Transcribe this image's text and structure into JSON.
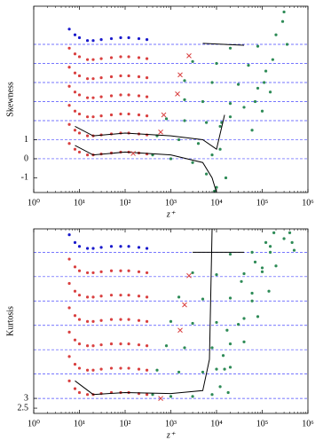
{
  "chart_data": [
    {
      "type": "scatter",
      "ylabel": "Skewness",
      "xlabel": "z⁺",
      "xscale": "log",
      "xlim": [
        1,
        1000000
      ],
      "xticks": [
        {
          "value": 1,
          "label": "10⁰"
        },
        {
          "value": 10,
          "label": "10¹"
        },
        {
          "value": 100,
          "label": "10²"
        },
        {
          "value": 1000,
          "label": "10³"
        },
        {
          "value": 10000,
          "label": "10⁴"
        },
        {
          "value": 100000,
          "label": "10⁵"
        },
        {
          "value": 1000000,
          "label": "10⁶"
        }
      ],
      "ylim": [
        -1.77,
        8
      ],
      "yticks": [
        -1,
        0,
        1
      ],
      "reference_lines": {
        "color": "#4a4aff",
        "values": [
          0,
          1,
          2,
          3,
          4,
          5,
          6
        ]
      },
      "series": [
        {
          "color": "#1a1acc",
          "marker": "dot",
          "x": [
            6,
            8,
            10,
            15,
            20,
            30,
            50,
            80,
            120,
            200,
            300
          ],
          "values": [
            6.8,
            6.5,
            6.35,
            6.2,
            6.2,
            6.25,
            6.3,
            6.35,
            6.35,
            6.3,
            6.25
          ]
        },
        {
          "color": "#d94040",
          "marker": "dot",
          "x": [
            6,
            8,
            10,
            15,
            20,
            30,
            50,
            80,
            120,
            200,
            300
          ],
          "values": [
            5.8,
            5.5,
            5.35,
            5.2,
            5.2,
            5.25,
            5.3,
            5.35,
            5.35,
            5.3,
            5.25
          ]
        },
        {
          "color": "#d94040",
          "marker": "dot",
          "x": [
            6,
            8,
            10,
            15,
            20,
            30,
            50,
            80,
            120,
            200,
            300
          ],
          "values": [
            4.8,
            4.5,
            4.35,
            4.2,
            4.2,
            4.25,
            4.3,
            4.35,
            4.35,
            4.3,
            4.25
          ]
        },
        {
          "color": "#d94040",
          "marker": "dot",
          "x": [
            6,
            8,
            10,
            15,
            20,
            30,
            50,
            80,
            120,
            200,
            300
          ],
          "values": [
            3.8,
            3.5,
            3.35,
            3.2,
            3.2,
            3.25,
            3.3,
            3.35,
            3.35,
            3.3,
            3.25
          ]
        },
        {
          "color": "#d94040",
          "marker": "dot",
          "x": [
            6,
            8,
            10,
            15,
            20,
            30,
            50,
            80,
            120,
            200,
            300
          ],
          "values": [
            2.8,
            2.5,
            2.35,
            2.2,
            2.2,
            2.25,
            2.3,
            2.35,
            2.35,
            2.3,
            2.25
          ]
        },
        {
          "color": "#d94040",
          "marker": "dot",
          "x": [
            6,
            8,
            10,
            15,
            20,
            30,
            50,
            80,
            120,
            200,
            300
          ],
          "values": [
            1.8,
            1.5,
            1.35,
            1.2,
            1.2,
            1.25,
            1.3,
            1.35,
            1.35,
            1.3,
            1.25
          ]
        },
        {
          "color": "#d94040",
          "marker": "dot",
          "x": [
            6,
            8,
            10,
            15,
            20,
            30,
            50,
            80,
            120,
            200,
            300
          ],
          "values": [
            0.8,
            0.5,
            0.35,
            0.2,
            0.2,
            0.25,
            0.3,
            0.35,
            0.35,
            0.3,
            0.25
          ]
        },
        {
          "color": "#2e8b57",
          "marker": "dot",
          "x": [
            400,
            1000,
            3000,
            6000,
            9000,
            12000
          ],
          "values": [
            0.2,
            0,
            -0.2,
            -0.8,
            -1.7,
            0.5
          ]
        },
        {
          "color": "#2e8b57",
          "marker": "dot",
          "x": [
            500,
            1500,
            4000,
            8000,
            10000,
            13000
          ],
          "values": [
            1.2,
            1.0,
            0.8,
            0.2,
            -1.5,
            1.9
          ]
        },
        {
          "color": "#2e8b57",
          "marker": "dot",
          "x": [
            800,
            2000,
            6000,
            12000,
            16000,
            20000
          ],
          "values": [
            2.1,
            2.0,
            1.9,
            1.7,
            -1,
            2.2
          ]
        },
        {
          "color": "#2e8b57",
          "marker": "dot",
          "x": [
            2000,
            5000,
            20000,
            40000,
            60000,
            70000
          ],
          "values": [
            3.1,
            3.0,
            2.9,
            2.7,
            1.5,
            3.0
          ]
        },
        {
          "color": "#2e8b57",
          "marker": "dot",
          "x": [
            2000,
            8000,
            30000,
            80000,
            100000,
            110000
          ],
          "values": [
            4.1,
            4.0,
            3.9,
            3.7,
            2.5,
            4.0
          ]
        },
        {
          "color": "#2e8b57",
          "marker": "dot",
          "x": [
            3000,
            10000,
            50000,
            120000,
            150000,
            170000
          ],
          "values": [
            5.1,
            5.0,
            4.9,
            4.6,
            3.5,
            5.2
          ]
        },
        {
          "color": "#2e8b57",
          "marker": "dot",
          "x": [
            20000,
            80000,
            200000,
            280000,
            300000,
            350000
          ],
          "values": [
            5.8,
            5.9,
            6.5,
            7.2,
            7.7,
            6.0
          ]
        },
        {
          "color": "#000000",
          "marker": "line",
          "x": [
            8,
            20,
            100,
            1000,
            5000,
            8000,
            10000
          ],
          "values": [
            0.7,
            0.2,
            0.35,
            0.2,
            -0.2,
            -1,
            -1.77
          ]
        },
        {
          "color": "#000000",
          "marker": "line",
          "x": [
            8,
            20,
            100,
            1000,
            5000,
            10000,
            15000
          ],
          "values": [
            1.7,
            1.2,
            1.35,
            1.2,
            1.0,
            0.5,
            2.3
          ]
        },
        {
          "color": "#000000",
          "marker": "line",
          "x": [
            5000,
            40000
          ],
          "values": [
            6.05,
            5.95
          ]
        },
        {
          "color": "#d94040",
          "marker": "cross",
          "x": [
            150,
            600,
            700,
            1400,
            1600,
            2500
          ],
          "values": [
            0.28,
            1.4,
            2.3,
            3.4,
            4.4,
            5.4
          ]
        }
      ]
    },
    {
      "type": "scatter",
      "ylabel": "Kurtosis",
      "xlabel": "z⁺",
      "xscale": "log",
      "xlim": [
        1,
        1000000
      ],
      "xticks": [
        {
          "value": 1,
          "label": "10⁰"
        },
        {
          "value": 10,
          "label": "10¹"
        },
        {
          "value": 100,
          "label": "10²"
        },
        {
          "value": 1000,
          "label": "10³"
        },
        {
          "value": 10000,
          "label": "10⁴"
        },
        {
          "value": 100000,
          "label": "10⁵"
        },
        {
          "value": 1000000,
          "label": "10⁶"
        }
      ],
      "ylim": [
        2.23,
        11.7
      ],
      "yticks": [
        2.5,
        3
      ],
      "reference_lines": {
        "color": "#4a4aff",
        "values": [
          3,
          4.25,
          5.5,
          6.75,
          8,
          9.25,
          10.5
        ]
      },
      "series": [
        {
          "color": "#1a1acc",
          "marker": "dot",
          "x": [
            6,
            8,
            10,
            15,
            20,
            30,
            50,
            80,
            120,
            200,
            300
          ],
          "values": [
            11.4,
            11.0,
            10.8,
            10.7,
            10.7,
            10.75,
            10.8,
            10.8,
            10.8,
            10.75,
            10.7
          ]
        },
        {
          "color": "#d94040",
          "marker": "dot",
          "x": [
            6,
            8,
            10,
            15,
            20,
            30,
            50,
            80,
            120,
            200,
            300
          ],
          "values": [
            10.15,
            9.75,
            9.55,
            9.45,
            9.45,
            9.5,
            9.55,
            9.55,
            9.55,
            9.5,
            9.45
          ]
        },
        {
          "color": "#d94040",
          "marker": "dot",
          "x": [
            6,
            8,
            10,
            15,
            20,
            30,
            50,
            80,
            120,
            200,
            300
          ],
          "values": [
            8.9,
            8.5,
            8.3,
            8.2,
            8.2,
            8.25,
            8.3,
            8.3,
            8.3,
            8.25,
            8.2
          ]
        },
        {
          "color": "#d94040",
          "marker": "dot",
          "x": [
            6,
            8,
            10,
            15,
            20,
            30,
            50,
            80,
            120,
            200,
            300
          ],
          "values": [
            7.65,
            7.25,
            7.05,
            6.95,
            6.95,
            7.0,
            7.05,
            7.05,
            7.05,
            7.0,
            6.95
          ]
        },
        {
          "color": "#d94040",
          "marker": "dot",
          "x": [
            6,
            8,
            10,
            15,
            20,
            30,
            50,
            80,
            120,
            200,
            300
          ],
          "values": [
            6.4,
            6.0,
            5.8,
            5.7,
            5.7,
            5.75,
            5.8,
            5.8,
            5.8,
            5.75,
            5.7
          ]
        },
        {
          "color": "#d94040",
          "marker": "dot",
          "x": [
            6,
            8,
            10,
            15,
            20,
            30,
            50,
            80,
            120,
            200,
            300
          ],
          "values": [
            5.15,
            4.75,
            4.55,
            4.45,
            4.45,
            4.5,
            4.55,
            4.55,
            4.55,
            4.5,
            4.45
          ]
        },
        {
          "color": "#d94040",
          "marker": "dot",
          "x": [
            6,
            8,
            10,
            15,
            20,
            30,
            50,
            80,
            120,
            200,
            300
          ],
          "values": [
            3.9,
            3.5,
            3.3,
            3.2,
            3.2,
            3.25,
            3.3,
            3.3,
            3.3,
            3.25,
            3.2
          ]
        },
        {
          "color": "#2e8b57",
          "marker": "dot",
          "x": [
            400,
            1000,
            3000,
            8000,
            12000,
            15000,
            18000
          ],
          "values": [
            3.2,
            3.1,
            3.1,
            3.2,
            3.6,
            4.5,
            3.3
          ]
        },
        {
          "color": "#2e8b57",
          "marker": "dot",
          "x": [
            500,
            1500,
            5000,
            10000,
            14000,
            17000,
            20000
          ],
          "values": [
            4.45,
            4.35,
            4.35,
            4.5,
            5.2,
            6.5,
            4.6
          ]
        },
        {
          "color": "#2e8b57",
          "marker": "dot",
          "x": [
            800,
            2000,
            8000,
            20000,
            30000,
            35000,
            40000
          ],
          "values": [
            5.7,
            5.6,
            5.6,
            5.8,
            6.8,
            9,
            5.9
          ]
        },
        {
          "color": "#2e8b57",
          "marker": "dot",
          "x": [
            1000,
            3000,
            10000,
            40000,
            60000,
            70000,
            80000
          ],
          "values": [
            6.95,
            6.85,
            6.9,
            7.1,
            8,
            10,
            7.2
          ]
        },
        {
          "color": "#2e8b57",
          "marker": "dot",
          "x": [
            1500,
            5000,
            20000,
            60000,
            100000,
            120000,
            140000
          ],
          "values": [
            8.2,
            8.1,
            8.15,
            8.4,
            9.5,
            11,
            8.5
          ]
        },
        {
          "color": "#2e8b57",
          "marker": "dot",
          "x": [
            3000,
            10000,
            40000,
            100000,
            150000,
            180000,
            200000
          ],
          "values": [
            9.45,
            9.35,
            9.4,
            9.7,
            10.5,
            11.5,
            9.8
          ]
        },
        {
          "color": "#2e8b57",
          "marker": "dot",
          "x": [
            20000,
            60000,
            150000,
            300000,
            400000,
            450000,
            500000
          ],
          "values": [
            10.4,
            10.5,
            10.8,
            11.2,
            11.5,
            11.0,
            10.6
          ]
        },
        {
          "color": "#000000",
          "marker": "line",
          "x": [
            8,
            20,
            100,
            1000,
            5000,
            7000,
            8000
          ],
          "values": [
            3.9,
            3.2,
            3.3,
            3.25,
            3.4,
            5,
            11.7
          ]
        },
        {
          "color": "#000000",
          "marker": "line",
          "x": [
            3000,
            40000
          ],
          "values": [
            10.5,
            10.5
          ]
        },
        {
          "color": "#d94040",
          "marker": "cross",
          "x": [
            600,
            1600,
            2000,
            2500
          ],
          "values": [
            3.0,
            6.5,
            7.8,
            9.3
          ]
        }
      ]
    }
  ]
}
